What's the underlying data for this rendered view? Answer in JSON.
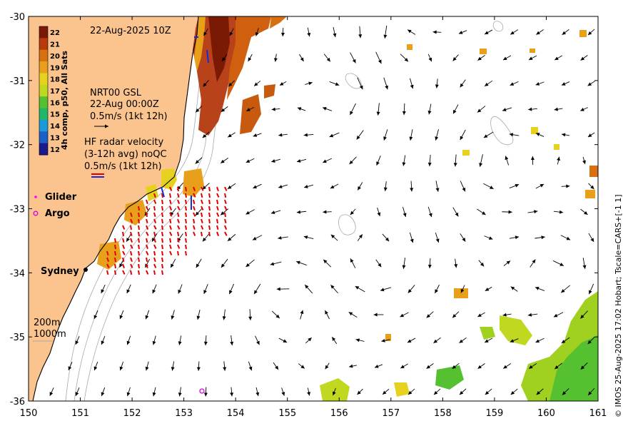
{
  "map": {
    "timestamp_title": "22-Aug-2025 10Z",
    "credit": "© IMOS 25-Aug-2025 17:02 Hobart; Tscale=CARS+[-1 1]",
    "x_ticks": [
      "150",
      "151",
      "152",
      "153",
      "154",
      "155",
      "156",
      "157",
      "158",
      "159",
      "160",
      "161"
    ],
    "y_ticks": [
      "-30",
      "-31",
      "-32",
      "-33",
      "-34",
      "-35",
      "-36"
    ],
    "colors": {
      "land": "#fbc48f",
      "ocean": "#ffffff",
      "hf_radar": "#e00000",
      "glider": "#ff00ff",
      "argo": "#e000e0",
      "contour": "#a8a8a8"
    }
  },
  "colorbar": {
    "label": "4h comp, p50, All Sats",
    "ticks": [
      "22",
      "21",
      "20",
      "19",
      "18",
      "17",
      "16",
      "15",
      "14",
      "13",
      "12"
    ],
    "colors": [
      "#7a1a05",
      "#b83a0a",
      "#d8700f",
      "#e8a01a",
      "#e6d21e",
      "#c0d820",
      "#55c030",
      "#1fb86a",
      "#1a9ad8",
      "#1e5ec8",
      "#1a1a8c"
    ]
  },
  "legend": {
    "altimetry_line1": "NRT00 GSL",
    "altimetry_line2": "22-Aug 00:00Z",
    "altimetry_scale": "0.5m/s (1kt 12h)",
    "hf_line1": "HF radar velocity",
    "hf_line2": "(3-12h avg) noQC",
    "hf_scale": "0.5m/s (1kt 12h)",
    "glider_label": "Glider",
    "argo_label": "Argo",
    "city_label": "Sydney",
    "isobath_200": "200m",
    "isobath_1000": "1000m"
  }
}
